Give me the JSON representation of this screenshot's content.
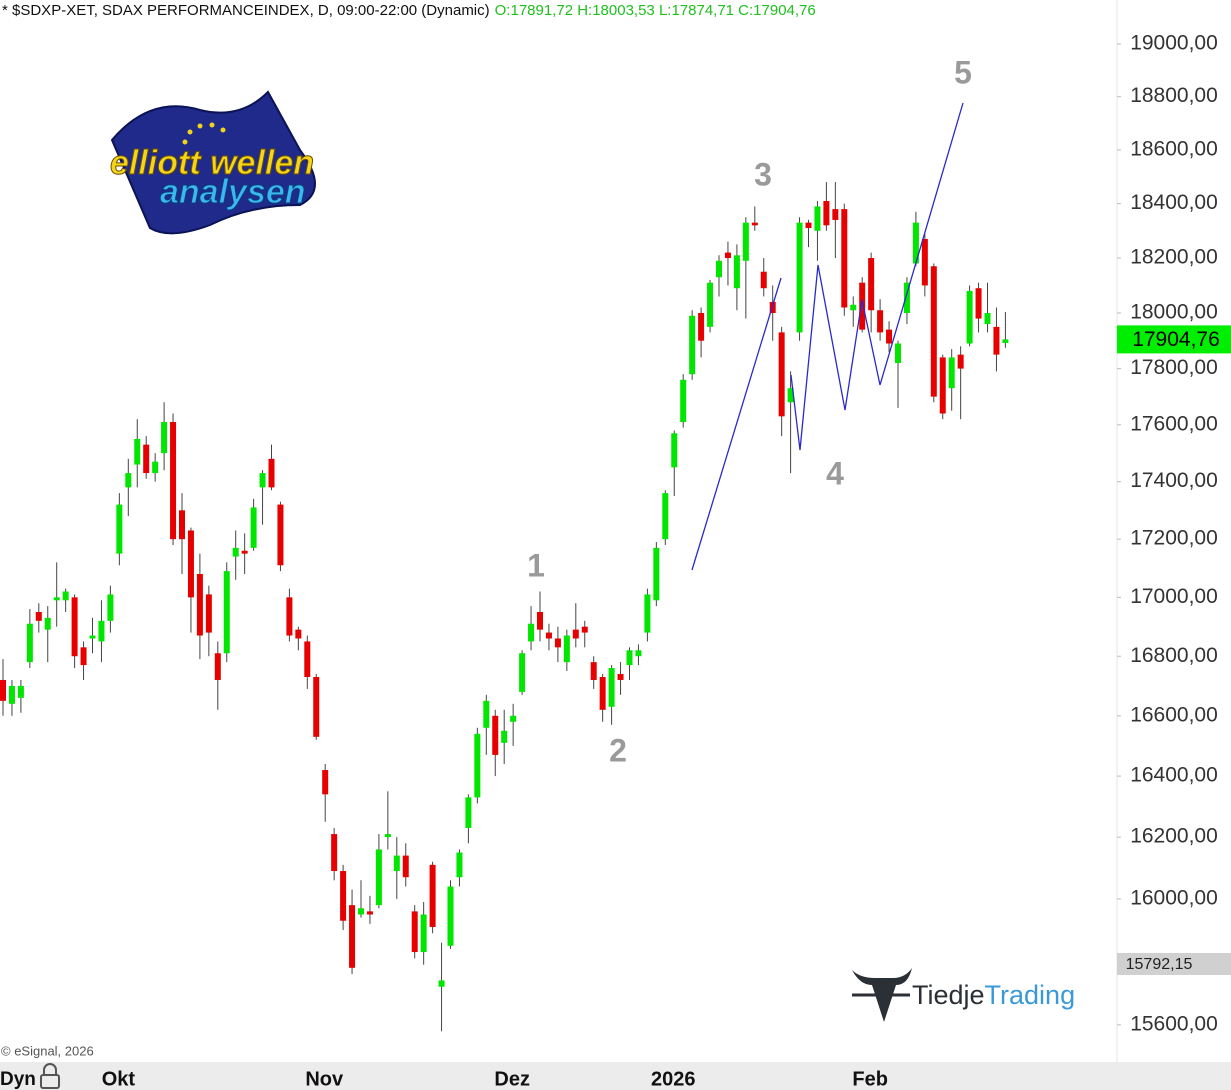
{
  "chart_data": {
    "type": "candlestick",
    "title": "* $SDXP-XET, SDAX PERFORMANCEINDEX, D, 09:00-22:00 (Dynamic)",
    "subtitle": "O:17891,72 H:18003,53 L:17874,71 C:17904,76",
    "source": "© eSignal, 2026",
    "mode_label": "Dyn",
    "log_scale": true,
    "up_color": "#00e600",
    "down_color": "#e60000",
    "wick_color": "#444444",
    "categories": [
      null,
      null,
      null,
      null,
      null,
      null,
      null,
      null,
      null,
      null,
      null,
      null,
      "Okt",
      null,
      null,
      null,
      null,
      null,
      null,
      null,
      null,
      null,
      null,
      null,
      null,
      null,
      null,
      null,
      null,
      null,
      null,
      null,
      null,
      null,
      null,
      "Nov",
      null,
      null,
      null,
      null,
      null,
      null,
      null,
      null,
      null,
      null,
      null,
      null,
      null,
      null,
      null,
      null,
      null,
      null,
      null,
      null,
      "Dez",
      null,
      null,
      null,
      null,
      null,
      null,
      null,
      null,
      null,
      null,
      null,
      null,
      null,
      null,
      null,
      null,
      null,
      "2026",
      null,
      null,
      null,
      null,
      null,
      null,
      null,
      null,
      null,
      null,
      null,
      null,
      null,
      null,
      null,
      null,
      null,
      null,
      null,
      null,
      null,
      "Feb",
      null,
      null,
      null,
      null,
      null,
      null,
      null,
      null,
      null,
      null,
      null,
      null,
      null,
      null,
      null,
      null
    ],
    "open": [
      16720,
      16640,
      16660,
      16780,
      16950,
      16890,
      16990,
      16990,
      17000,
      16830,
      16860,
      16850,
      16920,
      17150,
      17380,
      17460,
      17530,
      17430,
      17500,
      17610,
      17300,
      17230,
      17080,
      17010,
      16810,
      16810,
      17140,
      17160,
      17170,
      17380,
      17480,
      17320,
      17000,
      16890,
      16850,
      16730,
      16420,
      16210,
      16090,
      15980,
      15950,
      15960,
      15980,
      16200,
      16090,
      16140,
      15960,
      15830,
      16110,
      15720,
      15850,
      16070,
      16230,
      16330,
      16560,
      16600,
      16510,
      16580,
      16680,
      16850,
      16950,
      16880,
      16860,
      16780,
      16890,
      16900,
      16780,
      16730,
      16630,
      16740,
      16770,
      16800,
      16880,
      16990,
      17200,
      17450,
      17610,
      17780,
      18000,
      17950,
      18130,
      18220,
      18090,
      18190,
      18330,
      18150,
      18040,
      17930,
      17680,
      17930,
      18330,
      18300,
      18410,
      18380,
      18380,
      18010,
      18110,
      18200,
      18010,
      17940,
      17820,
      18000,
      18180,
      18270,
      18170,
      17840,
      17730,
      17850,
      17890,
      18090,
      17960,
      17950,
      17891.72
    ],
    "high": [
      16790,
      16720,
      16720,
      16960,
      16980,
      16970,
      17120,
      17030,
      17010,
      16850,
      16930,
      16990,
      17040,
      17360,
      17480,
      17620,
      17560,
      17500,
      17680,
      17640,
      17360,
      17240,
      17150,
      17040,
      16850,
      17120,
      17230,
      17220,
      17340,
      17440,
      17530,
      17330,
      17030,
      16900,
      16870,
      16740,
      16440,
      16230,
      16110,
      16030,
      16060,
      16010,
      16210,
      16350,
      16200,
      16180,
      15980,
      15990,
      16120,
      15860,
      16060,
      16160,
      16340,
      16560,
      16670,
      16620,
      16620,
      16640,
      16820,
      16970,
      17020,
      16910,
      16900,
      16890,
      16980,
      16920,
      16800,
      16740,
      16770,
      16780,
      16830,
      16840,
      17030,
      17190,
      17370,
      17580,
      17780,
      18010,
      18020,
      18120,
      18210,
      18260,
      18250,
      18350,
      18390,
      18200,
      18100,
      17950,
      17790,
      18350,
      18340,
      18410,
      18480,
      18480,
      18400,
      18060,
      18130,
      18220,
      18050,
      17970,
      17900,
      18130,
      18370,
      18290,
      18180,
      17850,
      17870,
      17880,
      18100,
      18110,
      18110,
      18020,
      18003.53
    ],
    "low": [
      16600,
      16600,
      16610,
      16760,
      16880,
      16780,
      16900,
      16950,
      16760,
      16720,
      16810,
      16780,
      16880,
      17110,
      17280,
      17380,
      17410,
      17400,
      17440,
      17180,
      17080,
      16880,
      16790,
      16800,
      16620,
      16780,
      17060,
      17080,
      17160,
      17250,
      17370,
      17090,
      16850,
      16820,
      16690,
      16520,
      16250,
      16060,
      15900,
      15760,
      15940,
      15920,
      15970,
      16160,
      16000,
      16040,
      15810,
      15790,
      15890,
      15580,
      15840,
      16040,
      16180,
      16310,
      16470,
      16400,
      16440,
      16500,
      16670,
      16820,
      16850,
      16820,
      16780,
      16750,
      16830,
      16830,
      16690,
      16580,
      16570,
      16670,
      16720,
      16770,
      16850,
      16970,
      17180,
      17350,
      17590,
      17760,
      17840,
      17930,
      18060,
      18100,
      18010,
      17980,
      18300,
      18060,
      17900,
      17560,
      17430,
      17900,
      18240,
      18190,
      18300,
      18200,
      17990,
      17950,
      17930,
      17930,
      17900,
      17860,
      17660,
      17960,
      18170,
      18060,
      17680,
      17620,
      17650,
      17620,
      17880,
      17930,
      17930,
      17790,
      17874.71
    ],
    "close": [
      16650,
      16700,
      16700,
      16910,
      16920,
      16930,
      17000,
      17020,
      16800,
      16770,
      16870,
      16920,
      17010,
      17320,
      17430,
      17550,
      17430,
      17470,
      17610,
      17200,
      17200,
      17000,
      16870,
      16880,
      16720,
      17090,
      17170,
      17150,
      17310,
      17430,
      17380,
      17110,
      16870,
      16860,
      16730,
      16530,
      16340,
      16090,
      15930,
      15780,
      15970,
      15950,
      16160,
      16210,
      16140,
      16070,
      15830,
      15950,
      15910,
      15740,
      16040,
      16150,
      16330,
      16540,
      16650,
      16470,
      16550,
      16600,
      16810,
      16910,
      16890,
      16860,
      16830,
      16870,
      16860,
      16880,
      16720,
      16620,
      16760,
      16720,
      16820,
      16820,
      17010,
      17170,
      17360,
      17570,
      17760,
      17990,
      17900,
      18110,
      18190,
      18200,
      18210,
      18330,
      18320,
      18090,
      18000,
      17630,
      17730,
      18330,
      18310,
      18390,
      18320,
      18340,
      18020,
      18030,
      17940,
      18010,
      17930,
      17890,
      17890,
      18110,
      18330,
      18100,
      17700,
      17640,
      17840,
      17800,
      18080,
      17980,
      18000,
      17850,
      17904.76
    ],
    "ylim": [
      15484,
      19169
    ],
    "yticks": [
      {
        "value": 15600,
        "label": "15600,00"
      },
      {
        "value": 16000,
        "label": "16000,00"
      },
      {
        "value": 16200,
        "label": "16200,00"
      },
      {
        "value": 16400,
        "label": "16400,00"
      },
      {
        "value": 16600,
        "label": "16600,00"
      },
      {
        "value": 16800,
        "label": "16800,00"
      },
      {
        "value": 17000,
        "label": "17000,00"
      },
      {
        "value": 17200,
        "label": "17200,00"
      },
      {
        "value": 17400,
        "label": "17400,00"
      },
      {
        "value": 17600,
        "label": "17600,00"
      },
      {
        "value": 17800,
        "label": "17800,00"
      },
      {
        "value": 18000,
        "label": "18000,00"
      },
      {
        "value": 18200,
        "label": "18200,00"
      },
      {
        "value": 18400,
        "label": "18400,00"
      },
      {
        "value": 18600,
        "label": "18600,00"
      },
      {
        "value": 18800,
        "label": "18800,00"
      },
      {
        "value": 19000,
        "label": "19000,00"
      }
    ],
    "last_price": {
      "value": 17904.76,
      "label": "17904,76",
      "color": "#00ee00"
    },
    "marker_price": {
      "value": 15792.15,
      "label": "15792,15",
      "color": "#d0d0d0"
    },
    "annotations": [
      "1",
      "2",
      "3",
      "4",
      "5"
    ]
  },
  "logos": {
    "line1": "elliott wellen",
    "line2": "analysen",
    "brand_a": "Tiedje",
    "brand_b": "Trading"
  }
}
